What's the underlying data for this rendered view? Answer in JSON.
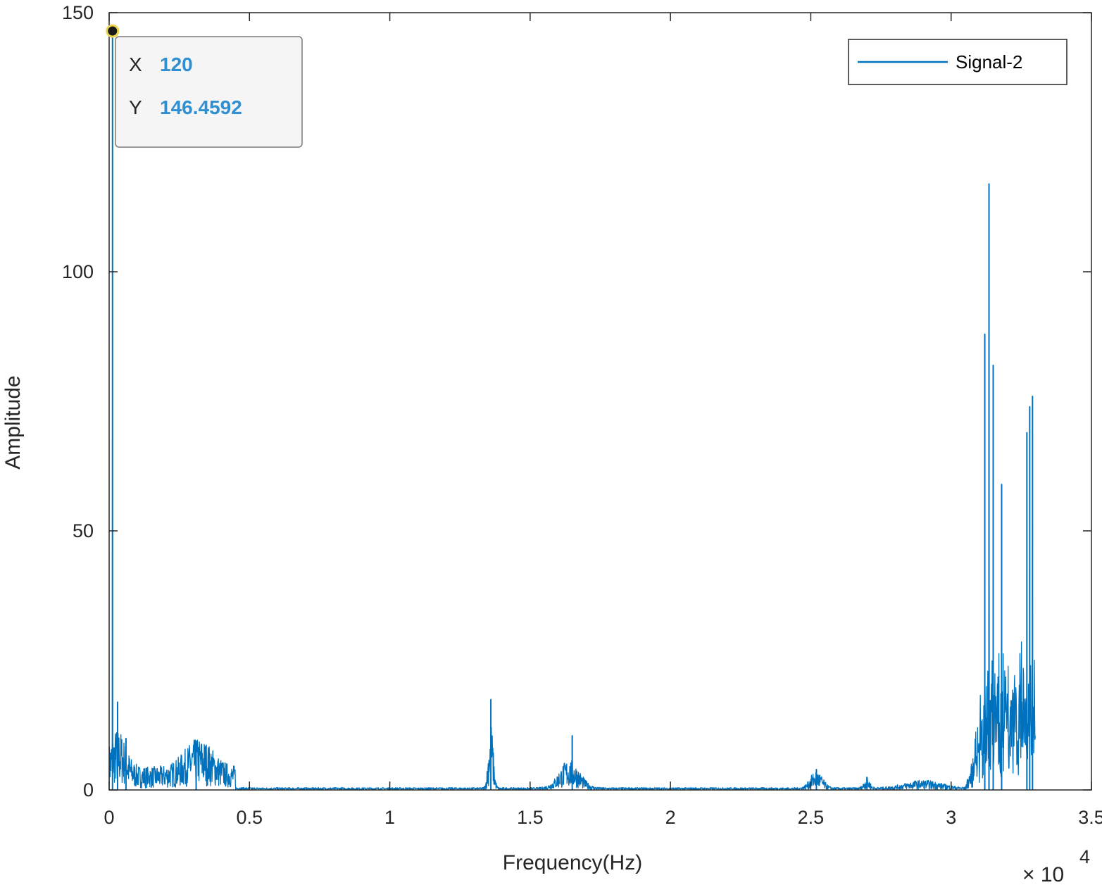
{
  "chart_data": {
    "type": "line",
    "xlabel": "Frequency(Hz)",
    "ylabel": "Amplitude",
    "x_exponent_label": "× 10",
    "x_exponent_power": "4",
    "x_scale_factor": 10000,
    "xlim": [
      0,
      3.5
    ],
    "ylim": [
      0,
      150
    ],
    "x_ticks": [
      0,
      0.5,
      1,
      1.5,
      2,
      2.5,
      3,
      3.5
    ],
    "x_tick_labels": [
      "0",
      "0.5",
      "1",
      "1.5",
      "2",
      "2.5",
      "3",
      "3.5"
    ],
    "y_ticks": [
      0,
      50,
      100,
      150
    ],
    "y_tick_labels": [
      "0",
      "50",
      "100",
      "150"
    ],
    "grid": false,
    "legend": {
      "position": "top-right",
      "entries": [
        "Signal-2"
      ]
    },
    "series": [
      {
        "name": "Signal-2",
        "color": "#0072bd",
        "peaks": [
          {
            "x": 120,
            "y": 146.4592
          },
          {
            "x": 300,
            "y": 17
          },
          {
            "x": 600,
            "y": 10
          },
          {
            "x": 3100,
            "y": 9.5
          },
          {
            "x": 13600,
            "y": 17.5
          },
          {
            "x": 16500,
            "y": 10.5
          },
          {
            "x": 25200,
            "y": 4
          },
          {
            "x": 27000,
            "y": 2.5
          },
          {
            "x": 31200,
            "y": 88
          },
          {
            "x": 31350,
            "y": 117
          },
          {
            "x": 31500,
            "y": 82
          },
          {
            "x": 31800,
            "y": 59
          },
          {
            "x": 32700,
            "y": 69
          },
          {
            "x": 32800,
            "y": 74
          },
          {
            "x": 32900,
            "y": 76
          }
        ],
        "min_frequency": 0,
        "max_frequency": 33000
      }
    ]
  },
  "datatip": {
    "x_key": "X",
    "x_value": "120",
    "y_key": "Y",
    "y_value": "146.4592"
  },
  "colors": {
    "line": "#0072bd",
    "axes": "#262626",
    "datatip_value": "#2f8fd1",
    "marker_edge": "#e8d44d"
  }
}
